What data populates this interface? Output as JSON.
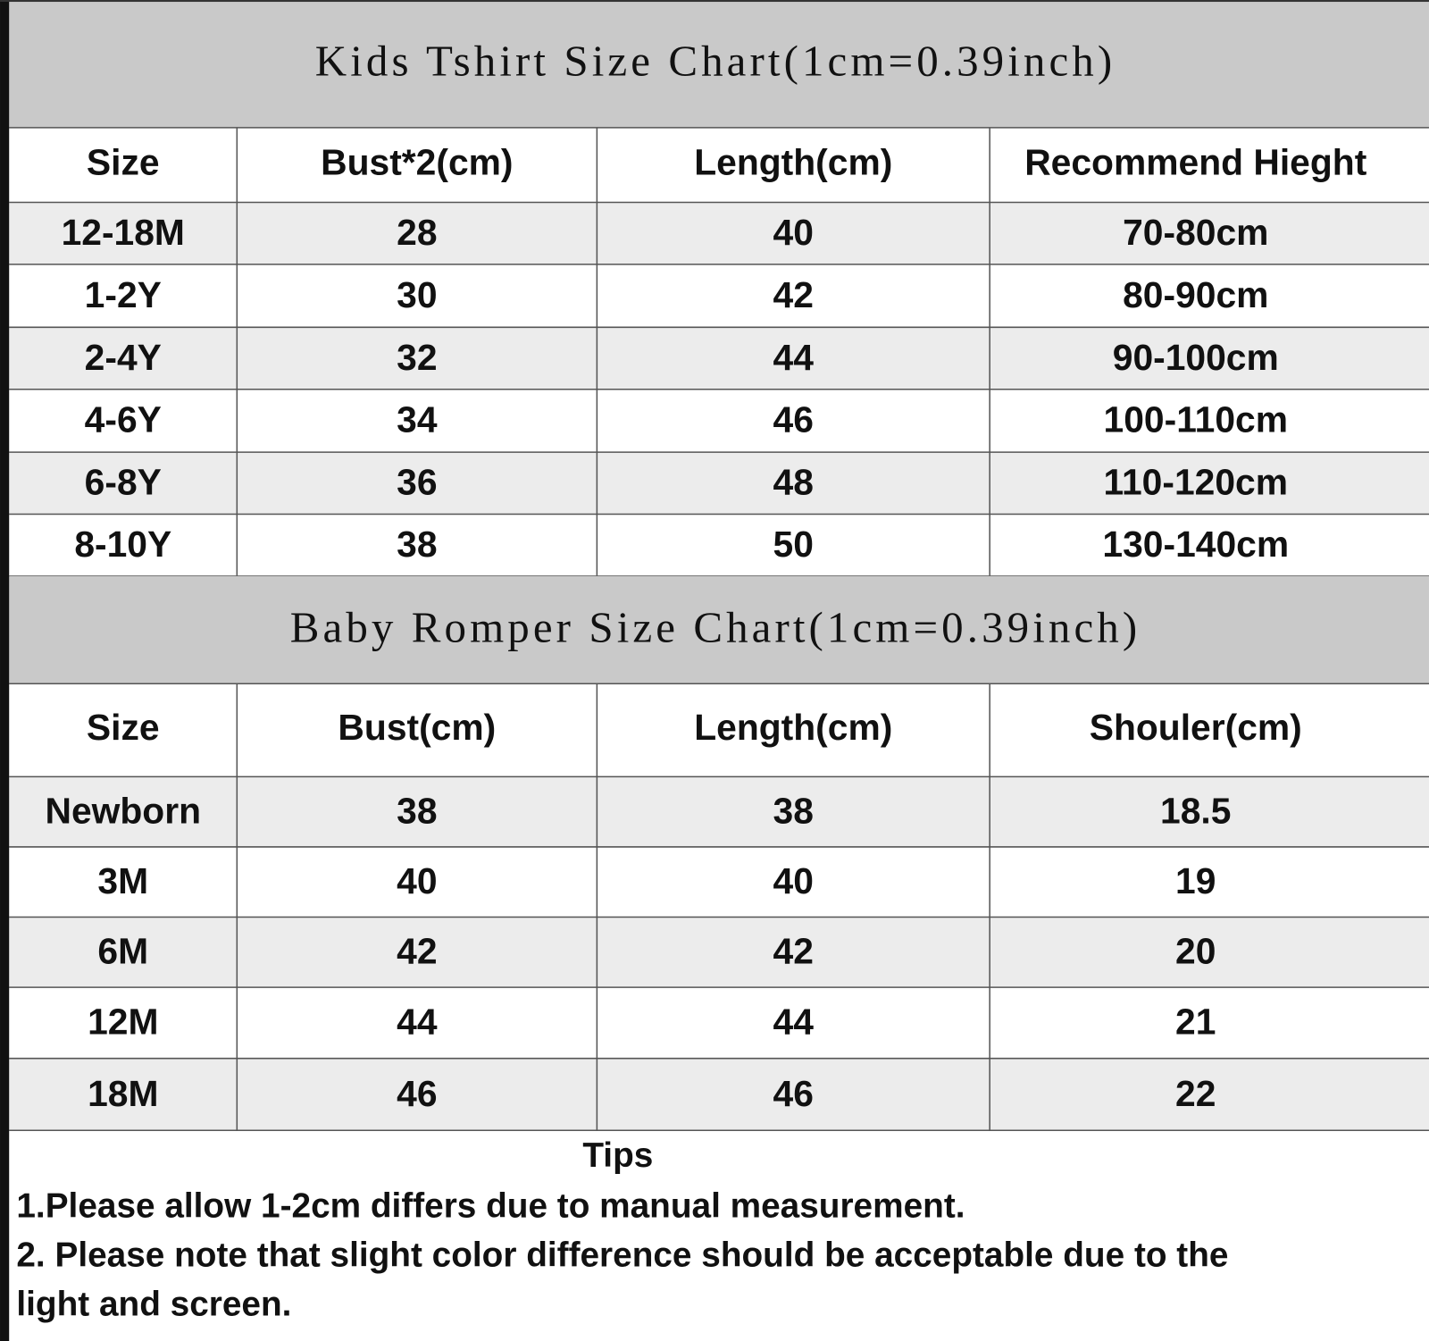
{
  "tables": [
    {
      "title": "Kids Tshirt Size Chart(1cm=0.39inch)",
      "columns": [
        "Size",
        "Bust*2(cm)",
        "Length(cm)",
        "Recommend Hieght"
      ],
      "rows": [
        [
          "12-18M",
          28,
          40,
          "70-80cm"
        ],
        [
          "1-2Y",
          30,
          42,
          "80-90cm"
        ],
        [
          "2-4Y",
          32,
          44,
          "90-100cm"
        ],
        [
          "4-6Y",
          34,
          46,
          "100-110cm"
        ],
        [
          "6-8Y",
          36,
          48,
          "110-120cm"
        ],
        [
          "8-10Y",
          38,
          50,
          "130-140cm"
        ]
      ]
    },
    {
      "title": "Baby Romper Size Chart(1cm=0.39inch)",
      "columns": [
        "Size",
        "Bust(cm)",
        "Length(cm)",
        "Shouler(cm)"
      ],
      "rows": [
        [
          "Newborn",
          38,
          38,
          18.5
        ],
        [
          "3M",
          40,
          40,
          19
        ],
        [
          "6M",
          42,
          42,
          20
        ],
        [
          "12M",
          44,
          44,
          21
        ],
        [
          "18M",
          46,
          46,
          22
        ]
      ]
    }
  ],
  "tips": {
    "heading": "Tips",
    "lines": [
      "1.Please allow 1-2cm differs due to manual measurement.",
      "2. Please note that slight color difference should be acceptable due to the",
      "light and screen."
    ]
  }
}
